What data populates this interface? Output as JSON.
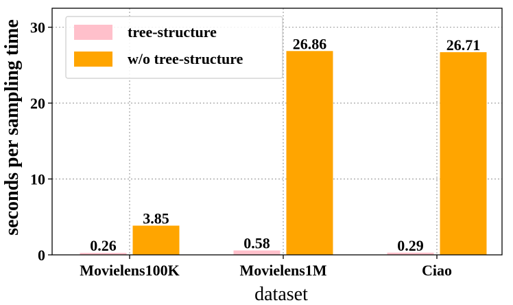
{
  "chart_data": {
    "type": "bar",
    "categories": [
      "Movielens100K",
      "Movielens1M",
      "Ciao"
    ],
    "series": [
      {
        "name": "tree-structure",
        "values": [
          0.26,
          0.58,
          0.29
        ],
        "labels": [
          "0.26",
          "0.58",
          "0.29"
        ],
        "color": "#ffc0cb"
      },
      {
        "name": "w/o tree-structure",
        "values": [
          3.85,
          26.86,
          26.71
        ],
        "labels": [
          "3.85",
          "26.86",
          "26.71"
        ],
        "color": "#ffa500"
      }
    ],
    "title": "",
    "xlabel": "dataset",
    "ylabel": "seconds per sampling time",
    "ylim": [
      0,
      32.5
    ],
    "yticks": [
      0,
      10,
      20,
      30
    ],
    "ytick_labels": [
      "0",
      "10",
      "20",
      "30"
    ],
    "grid": true,
    "legend_position": "top-left"
  }
}
